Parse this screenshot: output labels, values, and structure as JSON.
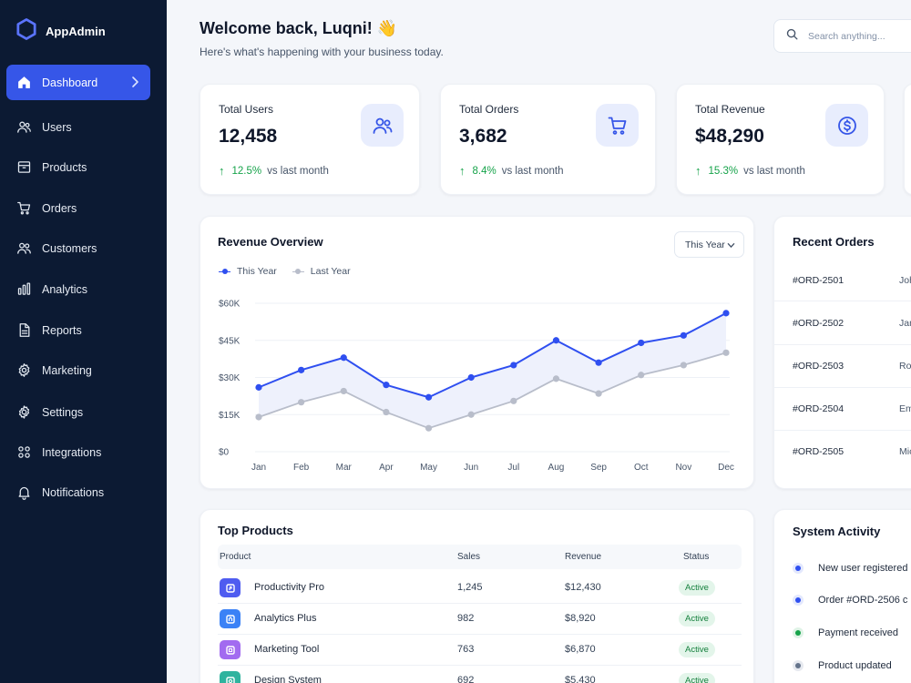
{
  "app": {
    "name": "AppAdmin"
  },
  "colors": {
    "accent": "#3656e8",
    "sidebar_bg": "#0c1a33",
    "success": "#16a34a",
    "this_year": "#2f4ff0",
    "last_year": "#b8bdca"
  },
  "sidebar": {
    "items": [
      {
        "label": "Dashboard",
        "icon": "home-icon",
        "active": true
      },
      {
        "label": "Users",
        "icon": "users-icon"
      },
      {
        "label": "Products",
        "icon": "box-icon"
      },
      {
        "label": "Orders",
        "icon": "cart-icon"
      },
      {
        "label": "Customers",
        "icon": "customers-icon"
      },
      {
        "label": "Analytics",
        "icon": "bar-chart-icon"
      },
      {
        "label": "Reports",
        "icon": "document-icon"
      },
      {
        "label": "Marketing",
        "icon": "megaphone-icon"
      },
      {
        "label": "Settings",
        "icon": "gear-icon"
      },
      {
        "label": "Integrations",
        "icon": "integrations-icon"
      },
      {
        "label": "Notifications",
        "icon": "bell-icon"
      }
    ]
  },
  "header": {
    "welcome": "Welcome back, Luqni! 👋",
    "subtitle": "Here's what's happening with your business today.",
    "search_placeholder": "Search anything..."
  },
  "stats": [
    {
      "label": "Total Users",
      "value": "12,458",
      "trend": "12.5%",
      "note": "vs last month",
      "icon": "users-icon"
    },
    {
      "label": "Total Orders",
      "value": "3,682",
      "trend": "8.4%",
      "note": "vs last month",
      "icon": "cart-icon"
    },
    {
      "label": "Total Revenue",
      "value": "$48,290",
      "trend": "15.3%",
      "note": "vs last month",
      "icon": "dollar-icon"
    }
  ],
  "revenue": {
    "title": "Revenue Overview",
    "period": "This Year"
  },
  "chart_data": {
    "type": "line",
    "title": "Revenue Overview",
    "categories": [
      "Jan",
      "Feb",
      "Mar",
      "Apr",
      "May",
      "Jun",
      "Jul",
      "Aug",
      "Sep",
      "Oct",
      "Nov",
      "Dec"
    ],
    "series": [
      {
        "name": "This Year",
        "values": [
          26000,
          33000,
          38000,
          27000,
          22000,
          30000,
          35000,
          45000,
          36000,
          44000,
          47000,
          56000
        ]
      },
      {
        "name": "Last Year",
        "values": [
          14000,
          20000,
          24500,
          16000,
          9500,
          15000,
          20500,
          29500,
          23500,
          31000,
          35000,
          40000
        ]
      }
    ],
    "y_ticks": [
      "$0",
      "$15K",
      "$30K",
      "$45K",
      "$60K"
    ],
    "ylim": [
      0,
      60000
    ],
    "legend": "top-left",
    "grid": true
  },
  "recent_orders": {
    "title": "Recent Orders",
    "rows": [
      {
        "id": "#ORD-2501",
        "name": "John"
      },
      {
        "id": "#ORD-2502",
        "name": "Jane"
      },
      {
        "id": "#ORD-2503",
        "name": "Robert"
      },
      {
        "id": "#ORD-2504",
        "name": "Emma"
      },
      {
        "id": "#ORD-2505",
        "name": "Michael"
      }
    ]
  },
  "top_products": {
    "title": "Top Products",
    "columns": [
      "Product",
      "Sales",
      "Revenue",
      "Status"
    ],
    "rows": [
      {
        "name": "Productivity Pro",
        "sales": "1,245",
        "revenue": "$12,430",
        "status": "Active",
        "color": "#4f5cf0",
        "icon": "productivity-icon"
      },
      {
        "name": "Analytics Plus",
        "sales": "982",
        "revenue": "$8,920",
        "status": "Active",
        "color": "#3b82f6",
        "icon": "analytics-icon"
      },
      {
        "name": "Marketing Tool",
        "sales": "763",
        "revenue": "$6,870",
        "status": "Active",
        "color": "#a26bf0",
        "icon": "marketing-icon"
      },
      {
        "name": "Design System",
        "sales": "692",
        "revenue": "$5,430",
        "status": "Active",
        "color": "#2fb39e",
        "icon": "design-icon"
      }
    ]
  },
  "system_activity": {
    "title": "System Activity",
    "items": [
      {
        "text": "New user registered",
        "color": "#2f4ff0"
      },
      {
        "text": "Order #ORD-2506 c",
        "color": "#2f4ff0"
      },
      {
        "text": "Payment received",
        "color": "#16a34a"
      },
      {
        "text": "Product updated",
        "color": "#64748b"
      }
    ]
  }
}
